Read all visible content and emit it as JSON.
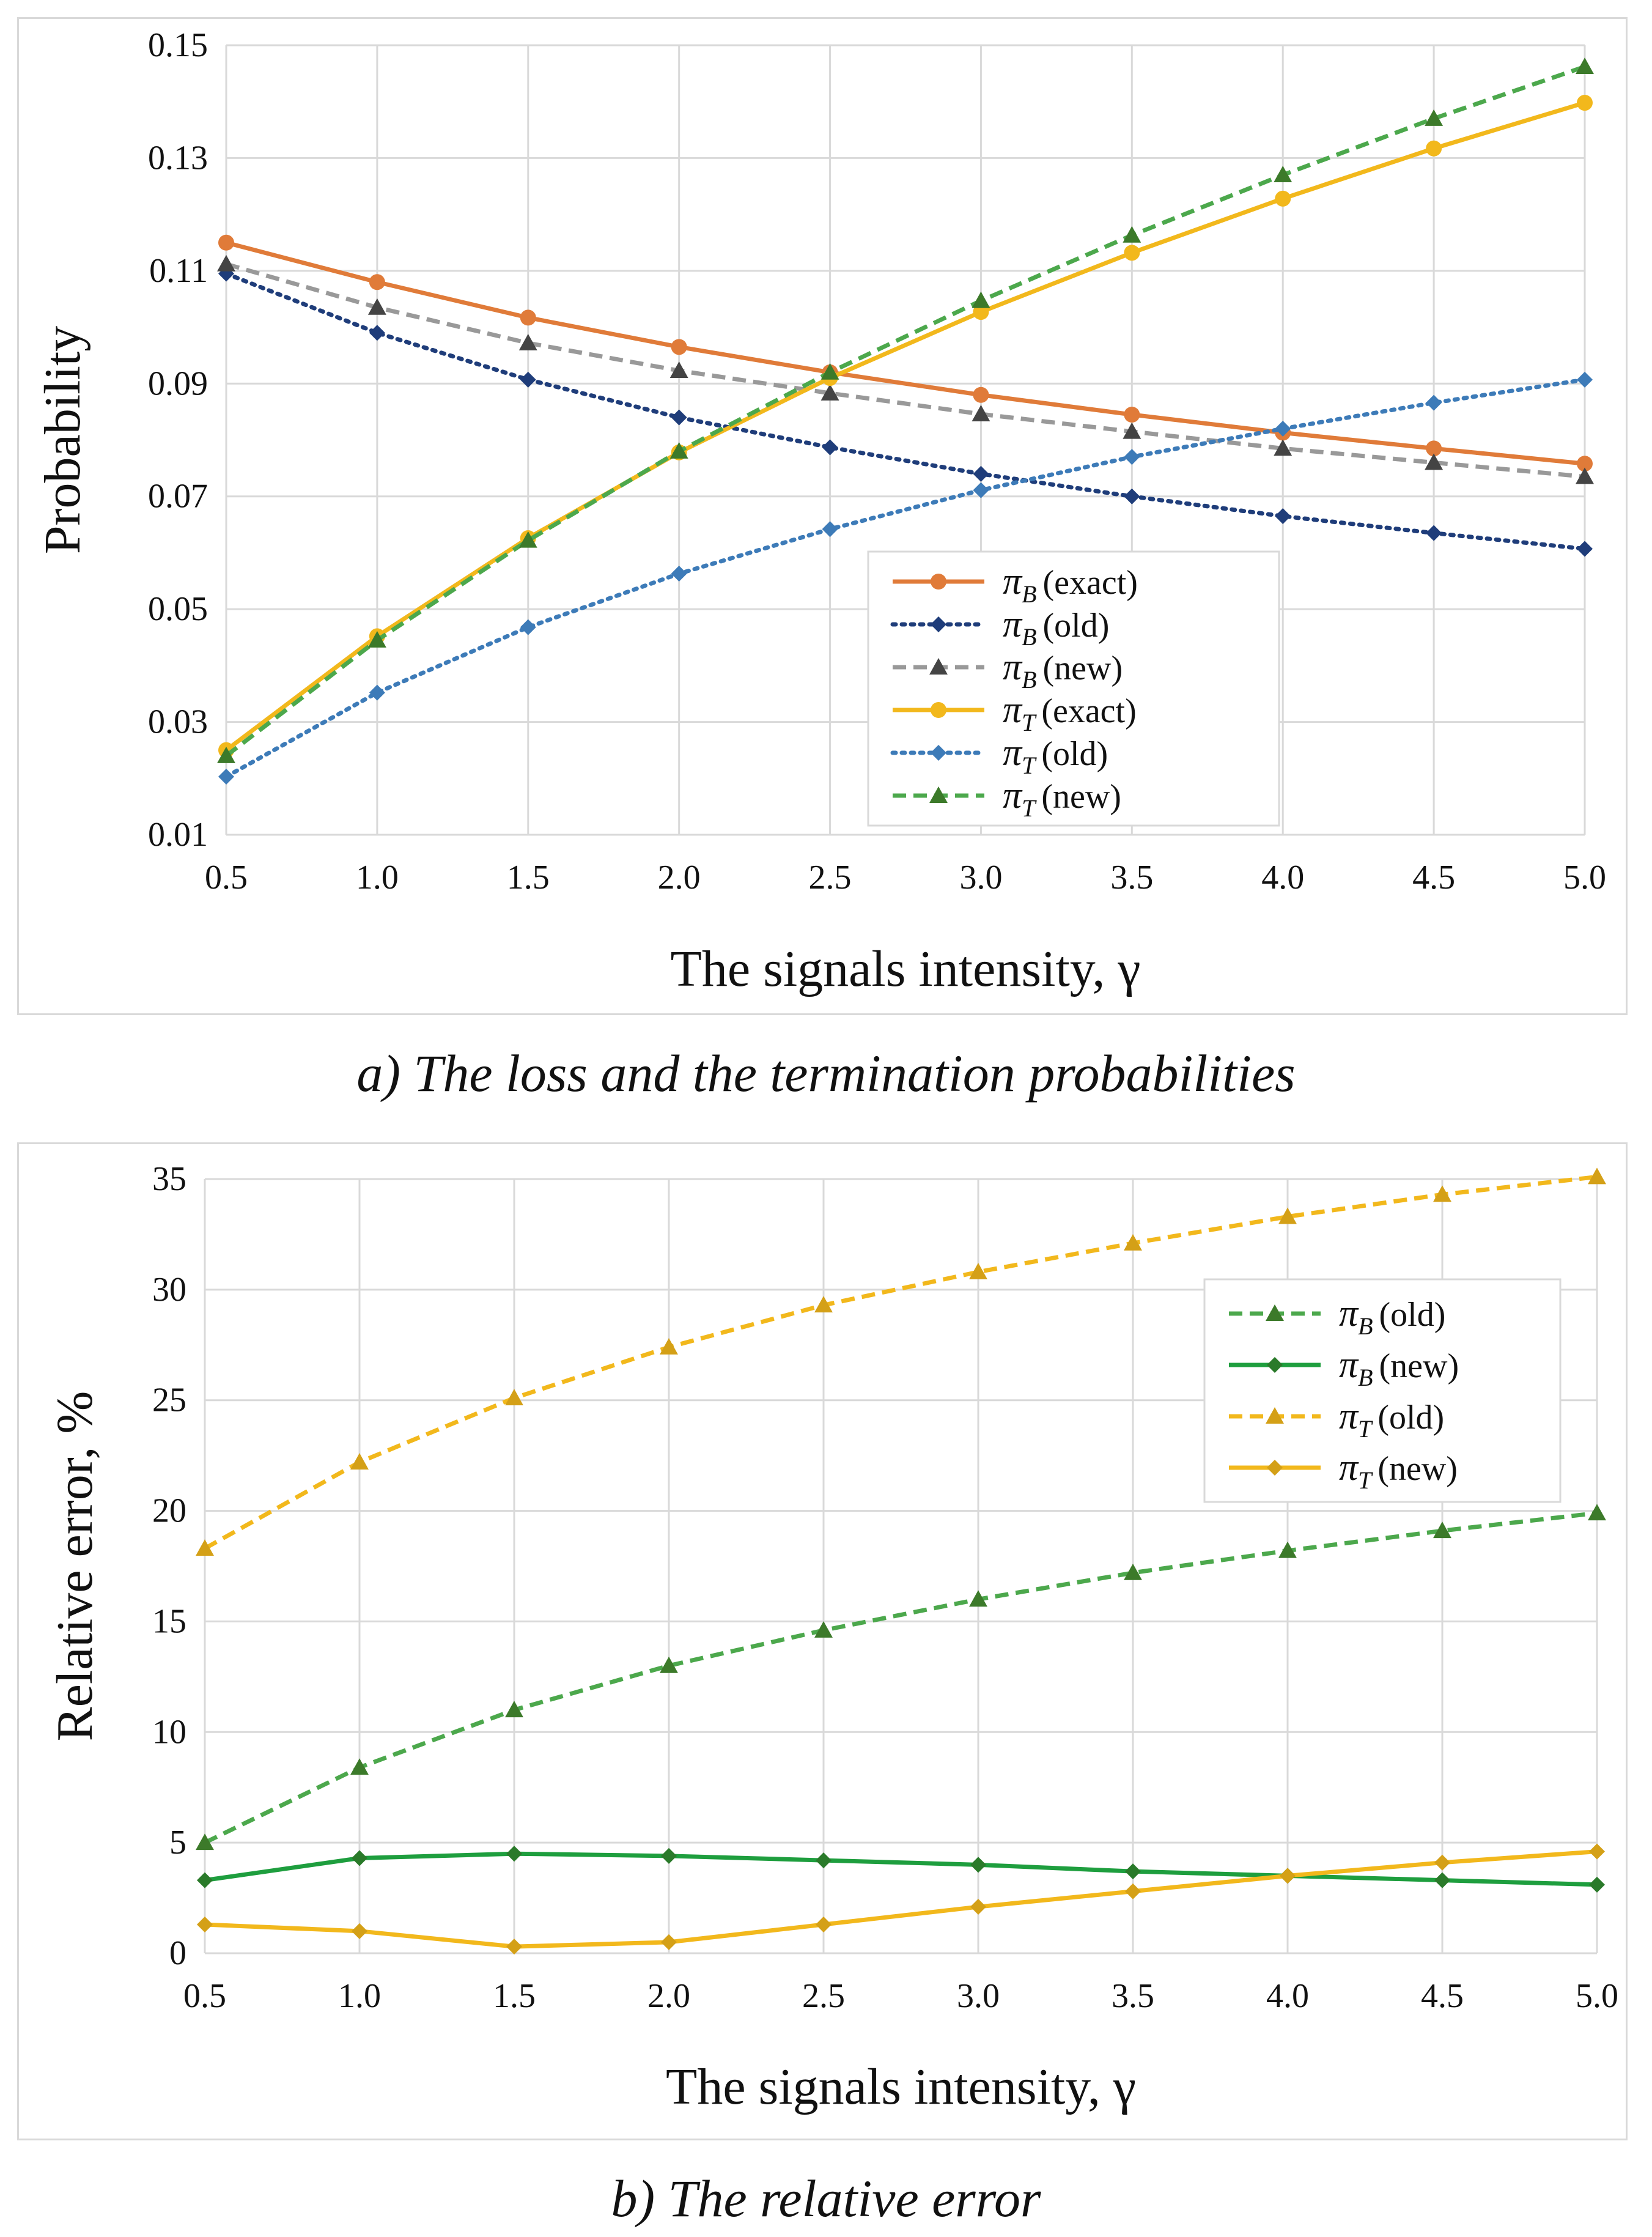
{
  "figure": {
    "caption_a": "a) The loss and the termination probabilities",
    "caption_b": "b) The relative error"
  },
  "colors": {
    "orange": "#E07B39",
    "navy": "#1F3D7A",
    "gray": "#999999",
    "gray_marker": "#444444",
    "gold": "#F2B81C",
    "steel": "#3D7BB8",
    "olive_green": "#4CA84C",
    "olive_marker": "#3C7A2A",
    "green": "#1E9E3E",
    "green_marker": "#2A7A2A",
    "gold_marker": "#D4A017",
    "grid": "#d9d9d9"
  },
  "chart_data": [
    {
      "type": "line",
      "title": "",
      "xlabel": "The signals intensity, γ",
      "ylabel": "Probability",
      "x": [
        0.5,
        1.0,
        1.5,
        2.0,
        2.5,
        3.0,
        3.5,
        4.0,
        4.5,
        5.0
      ],
      "xticks": [
        "0.5",
        "1.0",
        "1.5",
        "2.0",
        "2.5",
        "3.0",
        "3.5",
        "4.0",
        "4.5",
        "5.0"
      ],
      "xlim": [
        0.5,
        5.0
      ],
      "ylim": [
        0.01,
        0.15
      ],
      "yticks": [
        "0.01",
        "0.03",
        "0.05",
        "0.07",
        "0.09",
        "0.11",
        "0.13",
        "0.15"
      ],
      "ytick_values": [
        0.01,
        0.03,
        0.05,
        0.07,
        0.09,
        0.11,
        0.13,
        0.15
      ],
      "legend_position": "center-right",
      "series": [
        {
          "name": "π_B (exact)",
          "sym": "π",
          "sub": "B",
          "label": "(exact)",
          "color": "orange",
          "marker_color": "orange",
          "dash": "solid",
          "marker": "circle",
          "values": [
            0.115,
            0.108,
            0.1017,
            0.0965,
            0.092,
            0.088,
            0.0845,
            0.0813,
            0.0785,
            0.0758
          ]
        },
        {
          "name": "π_B (old)",
          "sym": "π",
          "sub": "B",
          "label": "(old)",
          "color": "navy",
          "marker_color": "navy",
          "dash": "dot",
          "marker": "diamond",
          "values": [
            0.1095,
            0.099,
            0.0907,
            0.084,
            0.0787,
            0.074,
            0.07,
            0.0665,
            0.0635,
            0.0607
          ]
        },
        {
          "name": "π_B (new)",
          "sym": "π",
          "sub": "B",
          "label": "(new)",
          "color": "gray",
          "marker_color": "gray_marker",
          "dash": "dash",
          "marker": "triangle",
          "values": [
            0.1112,
            0.1035,
            0.0972,
            0.0923,
            0.0883,
            0.0846,
            0.0815,
            0.0785,
            0.076,
            0.0735
          ]
        },
        {
          "name": "π_T (exact)",
          "sym": "π",
          "sub": "T",
          "label": "(exact)",
          "color": "gold",
          "marker_color": "gold",
          "dash": "solid",
          "marker": "circle",
          "values": [
            0.025,
            0.0452,
            0.0626,
            0.0778,
            0.091,
            0.1027,
            0.1132,
            0.1228,
            0.1317,
            0.1398
          ]
        },
        {
          "name": "π_T (old)",
          "sym": "π",
          "sub": "T",
          "label": "(old)",
          "color": "steel",
          "marker_color": "steel",
          "dash": "dot",
          "marker": "diamond",
          "values": [
            0.0203,
            0.0352,
            0.0468,
            0.0563,
            0.0642,
            0.0711,
            0.077,
            0.082,
            0.0866,
            0.0907
          ]
        },
        {
          "name": "π_T (new)",
          "sym": "π",
          "sub": "T",
          "label": "(new)",
          "color": "olive_green",
          "marker_color": "olive_marker",
          "dash": "dash",
          "marker": "triangle",
          "values": [
            0.024,
            0.0445,
            0.0622,
            0.078,
            0.092,
            0.1047,
            0.1163,
            0.127,
            0.137,
            0.1462
          ]
        }
      ]
    },
    {
      "type": "line",
      "title": "",
      "xlabel": "The signals intensity, γ",
      "ylabel": "Relative error, %",
      "x": [
        0.5,
        1.0,
        1.5,
        2.0,
        2.5,
        3.0,
        3.5,
        4.0,
        4.5,
        5.0
      ],
      "xticks": [
        "0.5",
        "1.0",
        "1.5",
        "2.0",
        "2.5",
        "3.0",
        "3.5",
        "4.0",
        "4.5",
        "5.0"
      ],
      "xlim": [
        0.5,
        5.0
      ],
      "ylim": [
        0,
        35
      ],
      "yticks": [
        "0",
        "5",
        "10",
        "15",
        "20",
        "25",
        "30",
        "35"
      ],
      "ytick_values": [
        0,
        5,
        10,
        15,
        20,
        25,
        30,
        35
      ],
      "legend_position": "top-right",
      "series": [
        {
          "name": "π_B (old)",
          "sym": "π",
          "sub": "B",
          "label": "(old)",
          "color": "olive_green",
          "marker_color": "olive_marker",
          "dash": "dash",
          "marker": "triangle",
          "values": [
            5.0,
            8.4,
            11.0,
            13.0,
            14.6,
            16.0,
            17.2,
            18.2,
            19.1,
            19.9
          ]
        },
        {
          "name": "π_B (new)",
          "sym": "π",
          "sub": "B",
          "label": "(new)",
          "color": "green",
          "marker_color": "green_marker",
          "dash": "solid",
          "marker": "diamond",
          "values": [
            3.3,
            4.3,
            4.5,
            4.4,
            4.2,
            4.0,
            3.7,
            3.5,
            3.3,
            3.1
          ]
        },
        {
          "name": "π_T (old)",
          "sym": "π",
          "sub": "T",
          "label": "(old)",
          "color": "gold",
          "marker_color": "gold_marker",
          "dash": "dash",
          "marker": "triangle",
          "values": [
            18.3,
            22.2,
            25.1,
            27.4,
            29.3,
            30.8,
            32.1,
            33.3,
            34.3,
            35.1
          ]
        },
        {
          "name": "π_T (new)",
          "sym": "π",
          "sub": "T",
          "label": "(new)",
          "color": "gold",
          "marker_color": "gold_marker",
          "dash": "solid",
          "marker": "diamond",
          "values": [
            1.3,
            1.0,
            0.3,
            0.5,
            1.3,
            2.1,
            2.8,
            3.5,
            4.1,
            4.6
          ]
        }
      ]
    }
  ]
}
